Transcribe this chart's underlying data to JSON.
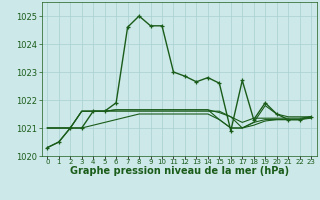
{
  "xlabel": "Graphe pression niveau de la mer (hPa)",
  "xlim_min": -0.5,
  "xlim_max": 23.5,
  "ylim_min": 1020.0,
  "ylim_max": 1025.5,
  "yticks": [
    1020,
    1021,
    1022,
    1023,
    1024,
    1025
  ],
  "xticks": [
    0,
    1,
    2,
    3,
    4,
    5,
    6,
    7,
    8,
    9,
    10,
    11,
    12,
    13,
    14,
    15,
    16,
    17,
    18,
    19,
    20,
    21,
    22,
    23
  ],
  "background_color": "#cde8e8",
  "grid_color": "#a8d0d0",
  "line_color": "#1a5c1a",
  "main_line": [
    1020.3,
    1020.5,
    1021.0,
    1021.0,
    1021.6,
    1021.6,
    1021.9,
    1024.6,
    1025.0,
    1024.65,
    1024.65,
    1023.0,
    1022.85,
    1022.65,
    1022.8,
    1022.6,
    1020.9,
    1022.7,
    1021.3,
    1021.9,
    1021.5,
    1021.3,
    1021.3,
    1021.4
  ],
  "line2": [
    1021.0,
    1021.0,
    1021.0,
    1021.6,
    1021.6,
    1021.6,
    1021.6,
    1021.6,
    1021.6,
    1021.6,
    1021.6,
    1021.6,
    1021.6,
    1021.6,
    1021.6,
    1021.6,
    1021.4,
    1021.0,
    1021.2,
    1021.8,
    1021.5,
    1021.4,
    1021.4,
    1021.4
  ],
  "line3": [
    1021.0,
    1021.0,
    1021.0,
    1021.6,
    1021.6,
    1021.6,
    1021.65,
    1021.65,
    1021.65,
    1021.65,
    1021.65,
    1021.65,
    1021.65,
    1021.65,
    1021.65,
    1021.55,
    1021.4,
    1021.2,
    1021.35,
    1021.35,
    1021.35,
    1021.35,
    1021.35,
    1021.4
  ],
  "line4": [
    1021.0,
    1021.0,
    1021.0,
    1021.6,
    1021.6,
    1021.6,
    1021.65,
    1021.65,
    1021.65,
    1021.65,
    1021.65,
    1021.65,
    1021.65,
    1021.65,
    1021.65,
    1021.3,
    1021.0,
    1021.0,
    1021.2,
    1021.3,
    1021.3,
    1021.3,
    1021.3,
    1021.4
  ],
  "line5": [
    1020.3,
    1020.5,
    1021.0,
    1021.0,
    1021.1,
    1021.2,
    1021.3,
    1021.4,
    1021.5,
    1021.5,
    1021.5,
    1021.5,
    1021.5,
    1021.5,
    1021.5,
    1021.3,
    1021.0,
    1021.0,
    1021.1,
    1021.25,
    1021.3,
    1021.3,
    1021.3,
    1021.35
  ],
  "tick_fontsize": 6,
  "xlabel_fontsize": 7,
  "linewidth_main": 1.0,
  "linewidth_other": 0.8
}
